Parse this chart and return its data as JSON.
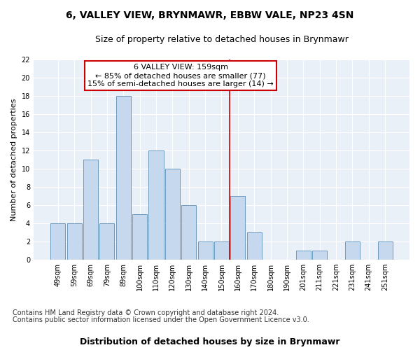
{
  "title": "6, VALLEY VIEW, BRYNMAWR, EBBW VALE, NP23 4SN",
  "subtitle": "Size of property relative to detached houses in Brynmawr",
  "xlabel": "Distribution of detached houses by size in Brynmawr",
  "ylabel": "Number of detached properties",
  "categories": [
    "49sqm",
    "59sqm",
    "69sqm",
    "79sqm",
    "89sqm",
    "100sqm",
    "110sqm",
    "120sqm",
    "130sqm",
    "140sqm",
    "150sqm",
    "160sqm",
    "170sqm",
    "180sqm",
    "190sqm",
    "201sqm",
    "211sqm",
    "221sqm",
    "231sqm",
    "241sqm",
    "251sqm"
  ],
  "values": [
    4,
    4,
    11,
    4,
    18,
    5,
    12,
    10,
    6,
    2,
    2,
    7,
    3,
    0,
    0,
    1,
    1,
    0,
    2,
    0,
    2
  ],
  "bar_color": "#c5d8ed",
  "bar_edge_color": "#5b8db8",
  "background_color": "#eaf0f8",
  "grid_color": "#ffffff",
  "annotation_line1": "6 VALLEY VIEW: 159sqm",
  "annotation_line2": "← 85% of detached houses are smaller (77)",
  "annotation_line3": "15% of semi-detached houses are larger (14) →",
  "annotation_box_color": "#ffffff",
  "annotation_box_edge": "#cc0000",
  "vline_color": "#cc0000",
  "ylim": [
    0,
    22
  ],
  "yticks": [
    0,
    2,
    4,
    6,
    8,
    10,
    12,
    14,
    16,
    18,
    20,
    22
  ],
  "footnote1": "Contains HM Land Registry data © Crown copyright and database right 2024.",
  "footnote2": "Contains public sector information licensed under the Open Government Licence v3.0.",
  "title_fontsize": 10,
  "subtitle_fontsize": 9,
  "xlabel_fontsize": 9,
  "ylabel_fontsize": 8,
  "tick_fontsize": 7,
  "annotation_fontsize": 8,
  "footnote_fontsize": 7
}
